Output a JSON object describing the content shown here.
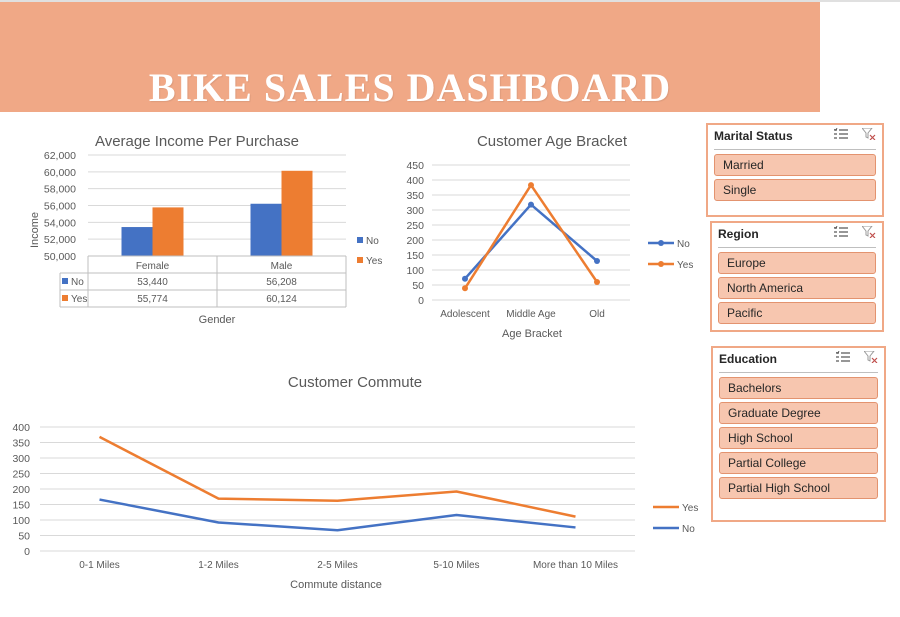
{
  "header": {
    "title": "BIKE SALES DASHBOARD"
  },
  "colors": {
    "banner": "#f0a886",
    "no": "#4472c4",
    "yes": "#ed7d31",
    "slicer_item": "#f7c6af"
  },
  "slicers": [
    {
      "title": "Marital Status",
      "items": [
        "Married",
        "Single"
      ]
    },
    {
      "title": "Region",
      "items": [
        "Europe",
        "North America",
        "Pacific"
      ]
    },
    {
      "title": "Education",
      "items": [
        "Bachelors",
        "Graduate Degree",
        "High School",
        "Partial College",
        "Partial High School"
      ]
    }
  ],
  "slicer_icons": [
    "multi-select-icon",
    "clear-filter-icon"
  ],
  "chart_data": [
    {
      "type": "bar",
      "title": "Average Income Per Purchase",
      "xlabel": "Gender",
      "ylabel": "Income",
      "categories": [
        "Female",
        "Male"
      ],
      "series": [
        {
          "name": "No",
          "values": [
            53440,
            56208
          ],
          "labels": [
            "53,440",
            "56,208"
          ]
        },
        {
          "name": "Yes",
          "values": [
            55774,
            60124
          ],
          "labels": [
            "55,774",
            "60,124"
          ]
        }
      ],
      "ylim": [
        50000,
        62000
      ],
      "yticks": [
        "50,000",
        "52,000",
        "54,000",
        "56,000",
        "58,000",
        "60,000",
        "62,000"
      ],
      "legend": "right",
      "data_table": true
    },
    {
      "type": "line",
      "title": "Customer Age Bracket",
      "xlabel": "Age Bracket",
      "ylabel": "",
      "categories": [
        "Adolescent",
        "Middle Age",
        "Old"
      ],
      "series": [
        {
          "name": "No",
          "values": [
            71,
            318,
            130
          ]
        },
        {
          "name": "Yes",
          "values": [
            39,
            383,
            60
          ]
        }
      ],
      "ylim": [
        0,
        450
      ],
      "yticks": [
        "0",
        "50",
        "100",
        "150",
        "200",
        "250",
        "300",
        "350",
        "400",
        "450"
      ],
      "legend": "right"
    },
    {
      "type": "line",
      "title": "Customer Commute",
      "xlabel": "Commute distance",
      "ylabel": "",
      "categories": [
        "0-1 Miles",
        "1-2 Miles",
        "2-5 Miles",
        "5-10 Miles",
        "More than 10 Miles"
      ],
      "series": [
        {
          "name": "Yes",
          "values": [
            368,
            169,
            162,
            192,
            111
          ]
        },
        {
          "name": "No",
          "values": [
            166,
            92,
            67,
            116,
            76
          ]
        }
      ],
      "ylim": [
        0,
        400
      ],
      "yticks": [
        "0",
        "50",
        "100",
        "150",
        "200",
        "250",
        "300",
        "350",
        "400"
      ],
      "legend": "right"
    }
  ]
}
